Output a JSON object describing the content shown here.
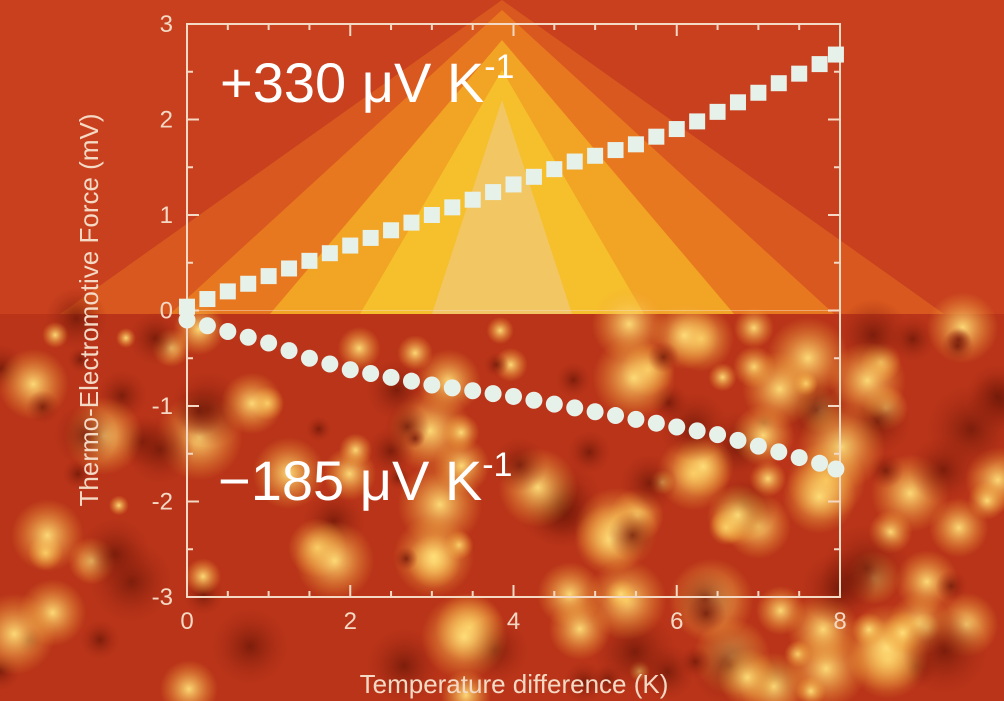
{
  "chart_data": {
    "type": "scatter",
    "xlabel": "Temperature difference (K)",
    "ylabel": "Thermo-Electromotive Force (mV)",
    "xlim": [
      0,
      8
    ],
    "ylim": [
      -3,
      3
    ],
    "x_ticks": [
      0,
      2,
      4,
      6,
      8
    ],
    "y_ticks": [
      3,
      2,
      1,
      0,
      -1,
      -2,
      -3
    ],
    "grid": false,
    "annotations": [
      {
        "text_main": "+330 μV K",
        "text_sup": "-1"
      },
      {
        "text_main": "−185 μV K",
        "text_sup": "-1"
      }
    ],
    "series": [
      {
        "marker": "square",
        "color": "#e6f1ea",
        "x": [
          0,
          0.25,
          0.5,
          0.75,
          1.0,
          1.25,
          1.5,
          1.75,
          2.0,
          2.25,
          2.5,
          2.75,
          3.0,
          3.25,
          3.5,
          3.75,
          4.0,
          4.25,
          4.5,
          4.75,
          5.0,
          5.25,
          5.5,
          5.75,
          6.0,
          6.25,
          6.5,
          6.75,
          7.0,
          7.25,
          7.5,
          7.75,
          7.95
        ],
        "y": [
          0.04,
          0.12,
          0.2,
          0.28,
          0.36,
          0.44,
          0.52,
          0.6,
          0.68,
          0.76,
          0.84,
          0.92,
          1.0,
          1.08,
          1.16,
          1.24,
          1.32,
          1.4,
          1.48,
          1.56,
          1.62,
          1.68,
          1.74,
          1.82,
          1.9,
          1.98,
          2.08,
          2.18,
          2.28,
          2.38,
          2.48,
          2.58,
          2.68
        ]
      },
      {
        "marker": "circle",
        "color": "#e6f1ea",
        "x": [
          0,
          0.25,
          0.5,
          0.75,
          1.0,
          1.25,
          1.5,
          1.75,
          2.0,
          2.25,
          2.5,
          2.75,
          3.0,
          3.25,
          3.5,
          3.75,
          4.0,
          4.25,
          4.5,
          4.75,
          5.0,
          5.25,
          5.5,
          5.75,
          6.0,
          6.25,
          6.5,
          6.75,
          7.0,
          7.25,
          7.5,
          7.75,
          7.95
        ],
        "y": [
          -0.1,
          -0.16,
          -0.22,
          -0.28,
          -0.34,
          -0.42,
          -0.5,
          -0.56,
          -0.62,
          -0.66,
          -0.7,
          -0.74,
          -0.78,
          -0.81,
          -0.84,
          -0.87,
          -0.9,
          -0.94,
          -0.98,
          -1.02,
          -1.06,
          -1.1,
          -1.14,
          -1.18,
          -1.22,
          -1.26,
          -1.3,
          -1.36,
          -1.42,
          -1.48,
          -1.54,
          -1.6,
          -1.66
        ]
      }
    ]
  }
}
